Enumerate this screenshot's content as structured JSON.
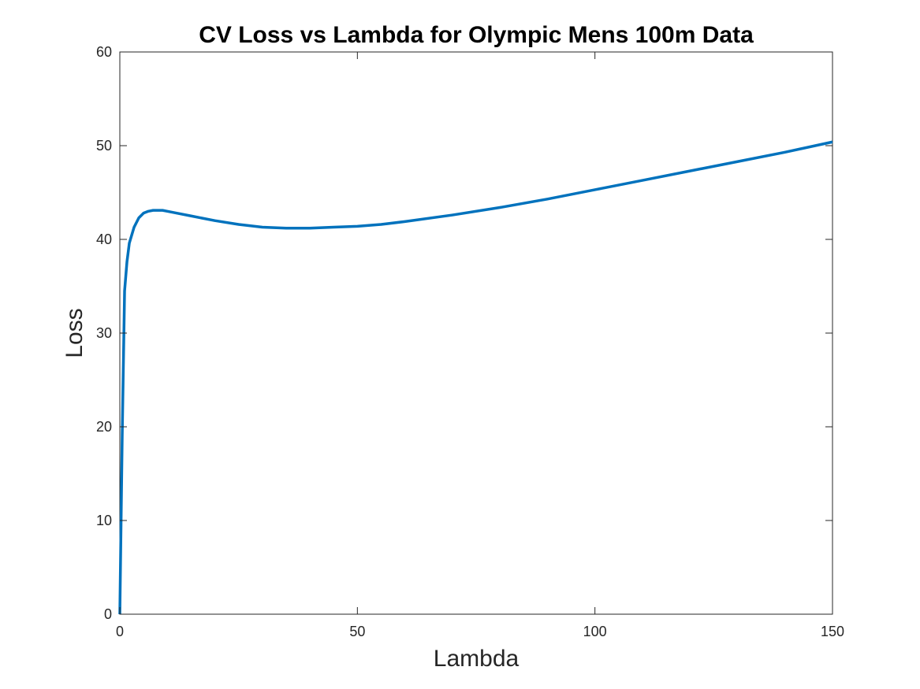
{
  "chart_data": {
    "type": "line",
    "title": "CV Loss vs Lambda for Olympic Mens 100m Data",
    "xlabel": "Lambda",
    "ylabel": "Loss",
    "xlim": [
      0,
      150
    ],
    "ylim": [
      0,
      60
    ],
    "xticks": [
      0,
      50,
      100,
      150
    ],
    "yticks": [
      0,
      10,
      20,
      30,
      40,
      50,
      60
    ],
    "xtick_labels": [
      "0",
      "50",
      "100",
      "150"
    ],
    "ytick_labels": [
      "0",
      "10",
      "20",
      "30",
      "40",
      "50",
      "60"
    ],
    "grid": false,
    "box": true,
    "colors": {
      "line": "#0072BD",
      "axes": "#262626",
      "background": "#ffffff"
    },
    "series": [
      {
        "x": [
          0,
          0.25,
          0.5,
          1,
          1.5,
          2,
          3,
          4,
          5,
          6,
          7,
          8,
          9,
          10,
          12,
          15,
          20,
          25,
          30,
          35,
          40,
          45,
          50,
          55,
          60,
          70,
          80,
          90,
          100,
          110,
          120,
          130,
          140,
          150
        ],
        "values": [
          0,
          9.5,
          19,
          34.5,
          37.6,
          39.6,
          41.3,
          42.3,
          42.8,
          43.0,
          43.1,
          43.1,
          43.1,
          43.0,
          42.8,
          42.5,
          42.0,
          41.6,
          41.3,
          41.2,
          41.2,
          41.3,
          41.4,
          41.6,
          41.9,
          42.6,
          43.4,
          44.3,
          45.3,
          46.3,
          47.3,
          48.3,
          49.3,
          50.4
        ]
      }
    ]
  }
}
